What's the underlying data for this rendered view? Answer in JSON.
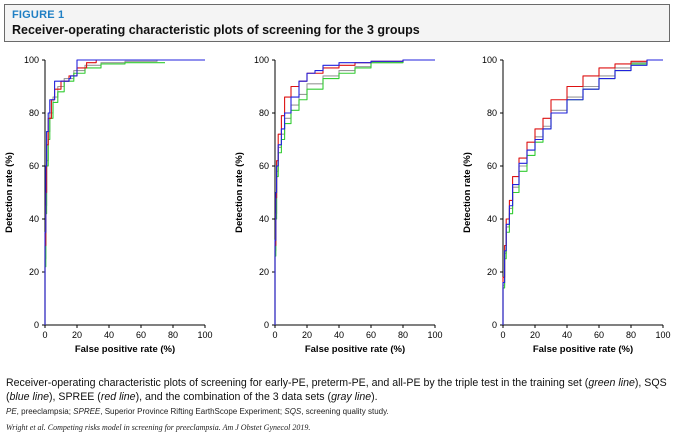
{
  "figure": {
    "label": "FIGURE 1",
    "title": "Receiver-operating characteristic plots of screening for the 3 groups"
  },
  "caption": {
    "parts": [
      {
        "text": "Receiver-operating characteristic plots of screening for early-PE, preterm-PE, and all-PE by the triple test in the training set (",
        "italic": false
      },
      {
        "text": "green line",
        "italic": true
      },
      {
        "text": "), SQS (",
        "italic": false
      },
      {
        "text": "blue line",
        "italic": true
      },
      {
        "text": "), SPREE (",
        "italic": false
      },
      {
        "text": "red line",
        "italic": true
      },
      {
        "text": "), and the combination of the 3 data sets (",
        "italic": false
      },
      {
        "text": "gray line",
        "italic": true
      },
      {
        "text": ").",
        "italic": false
      }
    ]
  },
  "abbreviations": [
    {
      "term": "PE",
      "definition": ", preeclampsia; "
    },
    {
      "term": "SPREE",
      "definition": ", Superior Province Rifting EarthScope Experiment; "
    },
    {
      "term": "SQS",
      "definition": ", screening quality study."
    }
  ],
  "citation": "Wright et al. Competing risks model in screening for preeclampsia. Am J Obstet Gynecol 2019.",
  "colors": {
    "green": "#33cc33",
    "blue": "#2222dd",
    "red": "#dd1111",
    "gray": "#999999"
  },
  "chart_data": [
    {
      "type": "line",
      "xlabel": "False positive rate (%)",
      "ylabel": "Detection rate (%)",
      "xlim": [
        0,
        100
      ],
      "ylim": [
        0,
        100
      ],
      "xticks": [
        "0",
        "20",
        "40",
        "60",
        "80",
        "100"
      ],
      "yticks": [
        "0",
        "20",
        "40",
        "60",
        "80",
        "100"
      ],
      "series": [
        {
          "color": "gray",
          "x": [
            0,
            0.5,
            1,
            2,
            3,
            5,
            8,
            12,
            18,
            25,
            35,
            50,
            70,
            100
          ],
          "y": [
            0,
            25,
            45,
            62,
            73,
            80,
            86,
            90,
            93,
            96,
            98,
            99,
            99.5,
            100
          ]
        },
        {
          "color": "green",
          "x": [
            0,
            0.5,
            1,
            2,
            3,
            5,
            8,
            12,
            18,
            25,
            35,
            50,
            75
          ],
          "y": [
            0,
            22,
            42,
            60,
            70,
            78,
            84,
            88,
            92,
            95,
            97,
            98.5,
            99
          ]
        },
        {
          "color": "red",
          "x": [
            0,
            0.5,
            1,
            2,
            4,
            6,
            10,
            15,
            20,
            26,
            32,
            40,
            60,
            100
          ],
          "y": [
            0,
            30,
            50,
            68,
            78,
            85,
            89,
            92,
            94,
            97,
            99,
            100,
            100,
            100
          ]
        },
        {
          "color": "blue",
          "x": [
            0,
            0.5,
            1,
            2,
            3,
            6,
            7,
            15,
            16,
            20,
            22,
            100
          ],
          "y": [
            0,
            35,
            60,
            73,
            80,
            85,
            92,
            92,
            93,
            94,
            100,
            100
          ]
        }
      ]
    },
    {
      "type": "line",
      "xlabel": "False positive rate (%)",
      "ylabel": "Detection rate (%)",
      "xlim": [
        0,
        100
      ],
      "ylim": [
        0,
        100
      ],
      "xticks": [
        "0",
        "20",
        "40",
        "60",
        "80",
        "100"
      ],
      "yticks": [
        "0",
        "20",
        "40",
        "60",
        "80",
        "100"
      ],
      "series": [
        {
          "color": "gray",
          "x": [
            0,
            0.5,
            1,
            2,
            4,
            6,
            10,
            15,
            20,
            30,
            40,
            50,
            60,
            80,
            100
          ],
          "y": [
            0,
            28,
            42,
            58,
            67,
            72,
            78,
            83,
            87,
            91,
            94,
            96,
            97.5,
            99,
            100
          ]
        },
        {
          "color": "green",
          "x": [
            0,
            0.5,
            1,
            2,
            4,
            6,
            10,
            15,
            20,
            30,
            40,
            50,
            60,
            80,
            100
          ],
          "y": [
            0,
            26,
            40,
            56,
            65,
            70,
            76,
            81,
            85,
            89,
            93,
            95,
            97,
            99,
            100
          ]
        },
        {
          "color": "red",
          "x": [
            0,
            0.5,
            1,
            2,
            4,
            6,
            10,
            15,
            20,
            30,
            40,
            50,
            60,
            80,
            100
          ],
          "y": [
            0,
            30,
            48,
            62,
            72,
            79,
            86,
            90,
            92,
            95,
            97,
            98,
            99,
            99.5,
            100
          ]
        },
        {
          "color": "blue",
          "x": [
            0,
            0.5,
            1,
            2,
            4,
            6,
            10,
            15,
            20,
            25,
            30,
            40,
            50,
            60,
            80,
            100
          ],
          "y": [
            0,
            32,
            50,
            60,
            68,
            74,
            80,
            86,
            92,
            95,
            96,
            98,
            99,
            99,
            99.5,
            100
          ]
        }
      ]
    },
    {
      "type": "line",
      "xlabel": "False positive rate (%)",
      "ylabel": "Detection rate (%)",
      "xlim": [
        0,
        100
      ],
      "ylim": [
        0,
        100
      ],
      "xticks": [
        "0",
        "20",
        "40",
        "60",
        "80",
        "100"
      ],
      "yticks": [
        "0",
        "20",
        "40",
        "60",
        "80",
        "100"
      ],
      "series": [
        {
          "color": "gray",
          "x": [
            0,
            1,
            2,
            4,
            6,
            10,
            15,
            20,
            25,
            30,
            40,
            50,
            60,
            70,
            80,
            90,
            100
          ],
          "y": [
            0,
            15,
            27,
            37,
            44,
            52,
            60,
            66,
            71,
            75,
            81,
            86,
            90,
            94,
            97,
            99,
            100
          ]
        },
        {
          "color": "green",
          "x": [
            0,
            1,
            2,
            4,
            6,
            10,
            15,
            20,
            25,
            30,
            40,
            50,
            60,
            70,
            80,
            90,
            100
          ],
          "y": [
            0,
            14,
            25,
            35,
            42,
            50,
            58,
            64,
            69,
            74,
            80,
            85,
            89,
            93,
            96,
            98.5,
            100
          ]
        },
        {
          "color": "red",
          "x": [
            0,
            1,
            2,
            4,
            6,
            10,
            15,
            20,
            25,
            30,
            40,
            50,
            60,
            70,
            80,
            90,
            100
          ],
          "y": [
            0,
            18,
            30,
            40,
            47,
            56,
            63,
            69,
            74,
            78,
            85,
            90,
            94,
            97,
            98.5,
            99.5,
            100
          ]
        },
        {
          "color": "blue",
          "x": [
            0,
            1,
            2,
            4,
            6,
            10,
            15,
            20,
            25,
            30,
            40,
            50,
            60,
            70,
            80,
            90,
            100
          ],
          "y": [
            0,
            16,
            28,
            38,
            45,
            53,
            61,
            66,
            70,
            74,
            80,
            85,
            89,
            93,
            96,
            98,
            100
          ]
        }
      ]
    }
  ]
}
